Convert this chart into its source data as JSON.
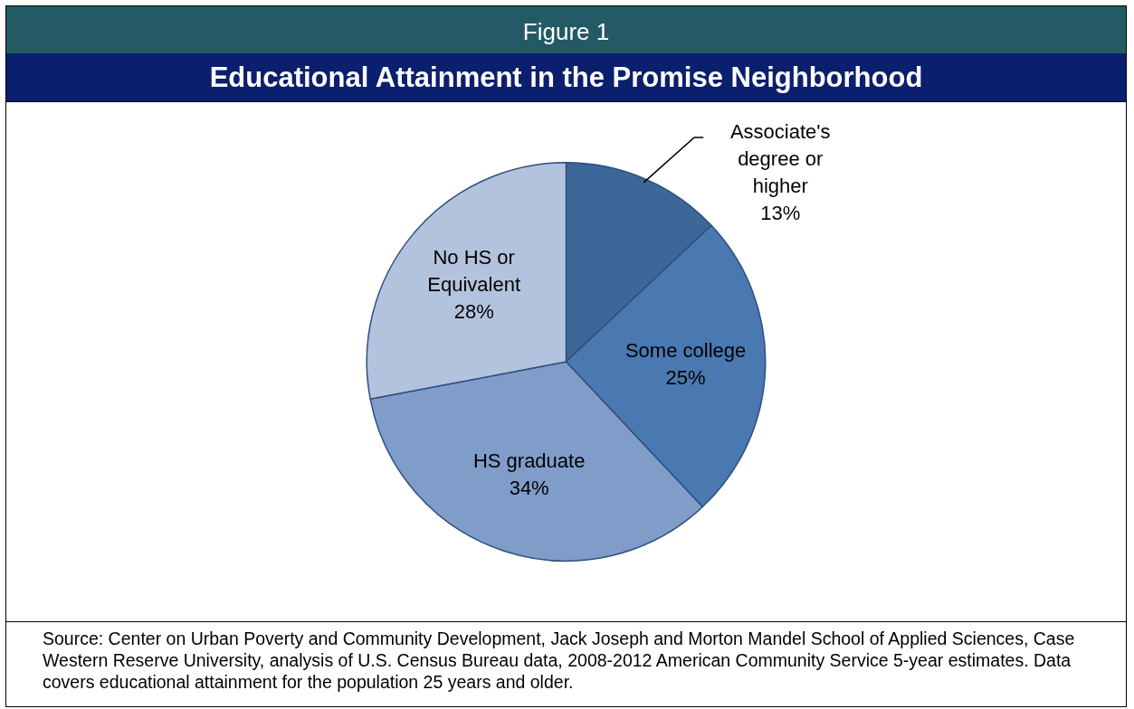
{
  "chart_data": {
    "type": "pie",
    "title": "Figure 1",
    "subtitle": "Educational Attainment in the Promise Neighborhood",
    "categories": [
      "Associate's degree or higher",
      "Some college",
      "HS graduate",
      "No HS or Equivalent"
    ],
    "values": [
      13,
      25,
      34,
      28
    ],
    "colors": [
      "#3d6699",
      "#4a78b0",
      "#7f9dc8",
      "#b3c3de"
    ],
    "value_labels": [
      "13%",
      "25%",
      "34%",
      "28%"
    ],
    "annotations": [
      "Source: Center on Urban Poverty and Community Development, Jack Joseph and Morton Mandel School of Applied Sciences, Case Western Reserve University, analysis of U.S. Census Bureau data, 2008-2012 American Community Service 5-year estimates. Data covers educational attainment for the population 25 years and older."
    ]
  }
}
